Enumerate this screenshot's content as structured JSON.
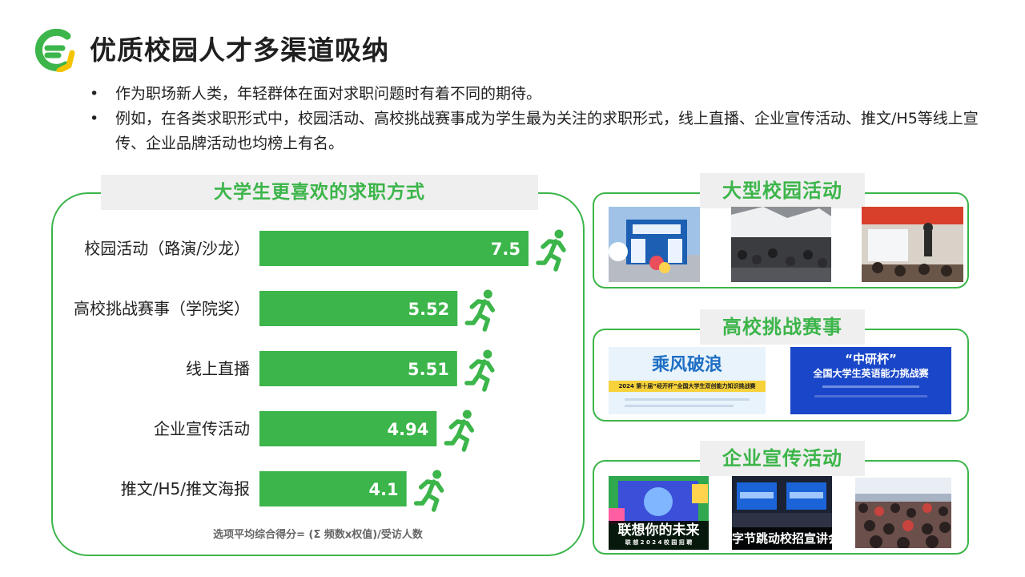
{
  "header": {
    "title": "优质校园人才多渠道吸纳",
    "logo_icon": "brand-logo-icon",
    "colors": {
      "green": "#3cb54a",
      "yellow": "#f5c400"
    }
  },
  "bullets": [
    "作为职场新人类，年轻群体在面对求职问题时有着不同的期待。",
    "例如，在各类求职形式中，校园活动、高校挑战赛事成为学生最为关注的求职形式，线上直播、企业宣传活动、推文/H5等线上宣传、企业品牌活动也均榜上有名。"
  ],
  "left_panel": {
    "formula": "选项平均综合得分= (Σ 频数x权值)/受访人数"
  },
  "chart_data": {
    "type": "bar",
    "orientation": "horizontal",
    "title": "大学生更喜欢的求职方式",
    "categories": [
      "校园活动（路演/沙龙）",
      "高校挑战赛事（学院奖）",
      "线上直播",
      "企业宣传活动",
      "推文/H5/推文海报"
    ],
    "values": [
      7.5,
      5.52,
      5.51,
      4.94,
      4.1
    ],
    "value_labels": [
      "7.5",
      "5.52",
      "5.51",
      "4.94",
      "4.1"
    ],
    "xlim": [
      0,
      7.5
    ],
    "bar_color": "#3cb54a",
    "marker_icon": "running-person-icon",
    "grid": false,
    "legend": "none"
  },
  "right_panels": [
    {
      "title": "大型校园活动",
      "photos": [
        {
          "name": "campus-booth-photo"
        },
        {
          "name": "campus-job-fair-crowd-photo"
        },
        {
          "name": "campus-seminar-photo"
        }
      ]
    },
    {
      "title": "高校挑战赛事",
      "photos": [
        {
          "name": "challenge-poster-chengfeng",
          "heading": "乘风破浪",
          "banner": "2024 第十届“经开杯”全国大学生双创能力知识挑战赛"
        },
        {
          "name": "challenge-poster-zhongyanbei",
          "heading": "“中研杯”",
          "subheading": "全国大学生英语能力挑战赛"
        }
      ]
    },
    {
      "title": "企业宣传活动",
      "photos": [
        {
          "name": "lenovo-campus-poster",
          "caption": "联想你的未来",
          "subcaption": "联 想 2 0 2 4 校 园 招 聘"
        },
        {
          "name": "bytedance-talk-photo",
          "caption": "字节跳动校招宣讲会"
        },
        {
          "name": "audience-hall-photo"
        }
      ]
    }
  ]
}
